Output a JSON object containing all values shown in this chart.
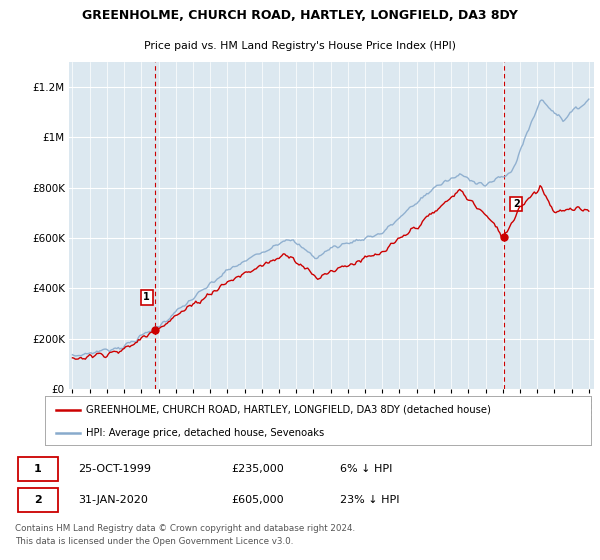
{
  "title": "GREENHOLME, CHURCH ROAD, HARTLEY, LONGFIELD, DA3 8DY",
  "subtitle": "Price paid vs. HM Land Registry's House Price Index (HPI)",
  "legend_line1": "GREENHOLME, CHURCH ROAD, HARTLEY, LONGFIELD, DA3 8DY (detached house)",
  "legend_line2": "HPI: Average price, detached house, Sevenoaks",
  "annotation1_label": "1",
  "annotation1_date": "25-OCT-1999",
  "annotation1_price": "£235,000",
  "annotation1_hpi": "6% ↓ HPI",
  "annotation2_label": "2",
  "annotation2_date": "31-JAN-2020",
  "annotation2_price": "£605,000",
  "annotation2_hpi": "23% ↓ HPI",
  "footer": "Contains HM Land Registry data © Crown copyright and database right 2024.\nThis data is licensed under the Open Government Licence v3.0.",
  "ylim": [
    0,
    1300000
  ],
  "yticks": [
    0,
    200000,
    400000,
    600000,
    800000,
    1000000,
    1200000
  ],
  "ytick_labels": [
    "£0",
    "£200K",
    "£400K",
    "£600K",
    "£800K",
    "£1M",
    "£1.2M"
  ],
  "red_color": "#cc0000",
  "blue_color": "#88aacc",
  "sale1_year": 1999.82,
  "sale1_value": 235000,
  "sale2_year": 2020.08,
  "sale2_value": 605000,
  "grid_color": "#c8d8e8",
  "bg_color": "#dce8f0",
  "vline_color": "#cc0000"
}
